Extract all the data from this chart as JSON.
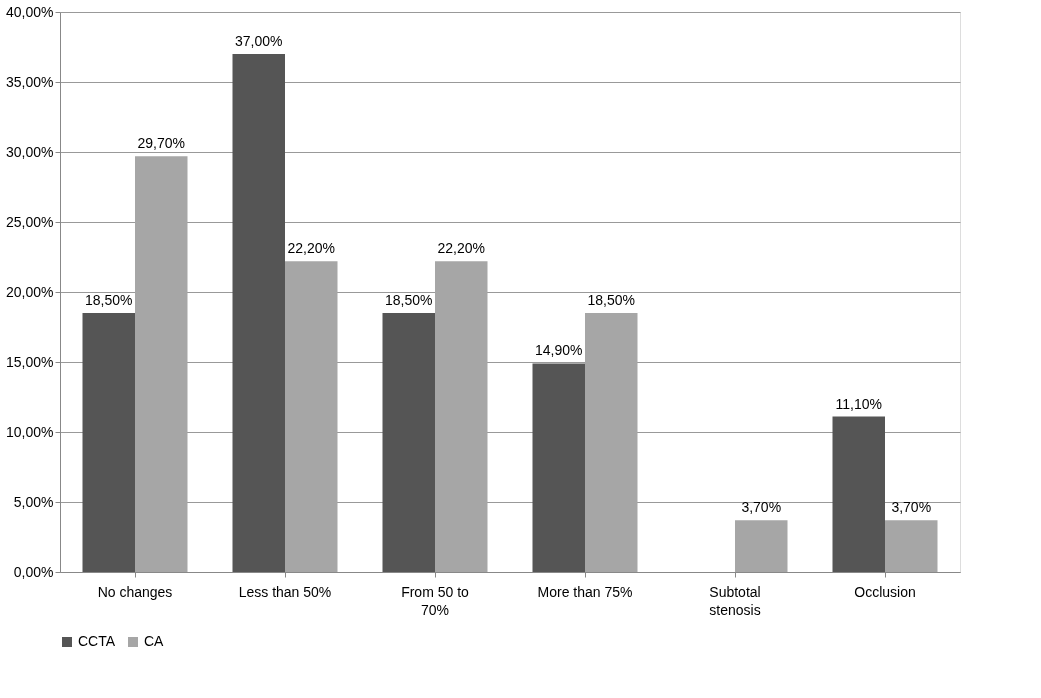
{
  "chart_data": {
    "type": "bar",
    "categories": [
      "No changes",
      "Less than 50%",
      "From 50 to 70%",
      "More than 75%",
      "Subtotal stenosis",
      "Occlusion"
    ],
    "series": [
      {
        "name": "CCTA",
        "color": "#555555",
        "values": [
          18.5,
          37.0,
          18.5,
          14.9,
          0,
          11.1
        ],
        "value_labels": [
          "18,50%",
          "37,00%",
          "18,50%",
          "14,90%",
          null,
          "11,10%"
        ]
      },
      {
        "name": "CA",
        "color": "#a6a6a6",
        "values": [
          29.7,
          22.2,
          22.2,
          18.5,
          3.7,
          3.7
        ],
        "value_labels": [
          "29,70%",
          "22,20%",
          "22,20%",
          "18,50%",
          "3,70%",
          "3,70%"
        ]
      }
    ],
    "ylim": [
      0,
      40
    ],
    "yticks": [
      {
        "value": 0,
        "label": "0,00%"
      },
      {
        "value": 5,
        "label": "5,00%"
      },
      {
        "value": 10,
        "label": "10,00%"
      },
      {
        "value": 15,
        "label": "15,00%"
      },
      {
        "value": 20,
        "label": "20,00%"
      },
      {
        "value": 25,
        "label": "25,00%"
      },
      {
        "value": 30,
        "label": "30,00%"
      },
      {
        "value": 35,
        "label": "35,00%"
      },
      {
        "value": 40,
        "label": "40,00%"
      }
    ],
    "grid": "y",
    "legend": "bottom"
  }
}
